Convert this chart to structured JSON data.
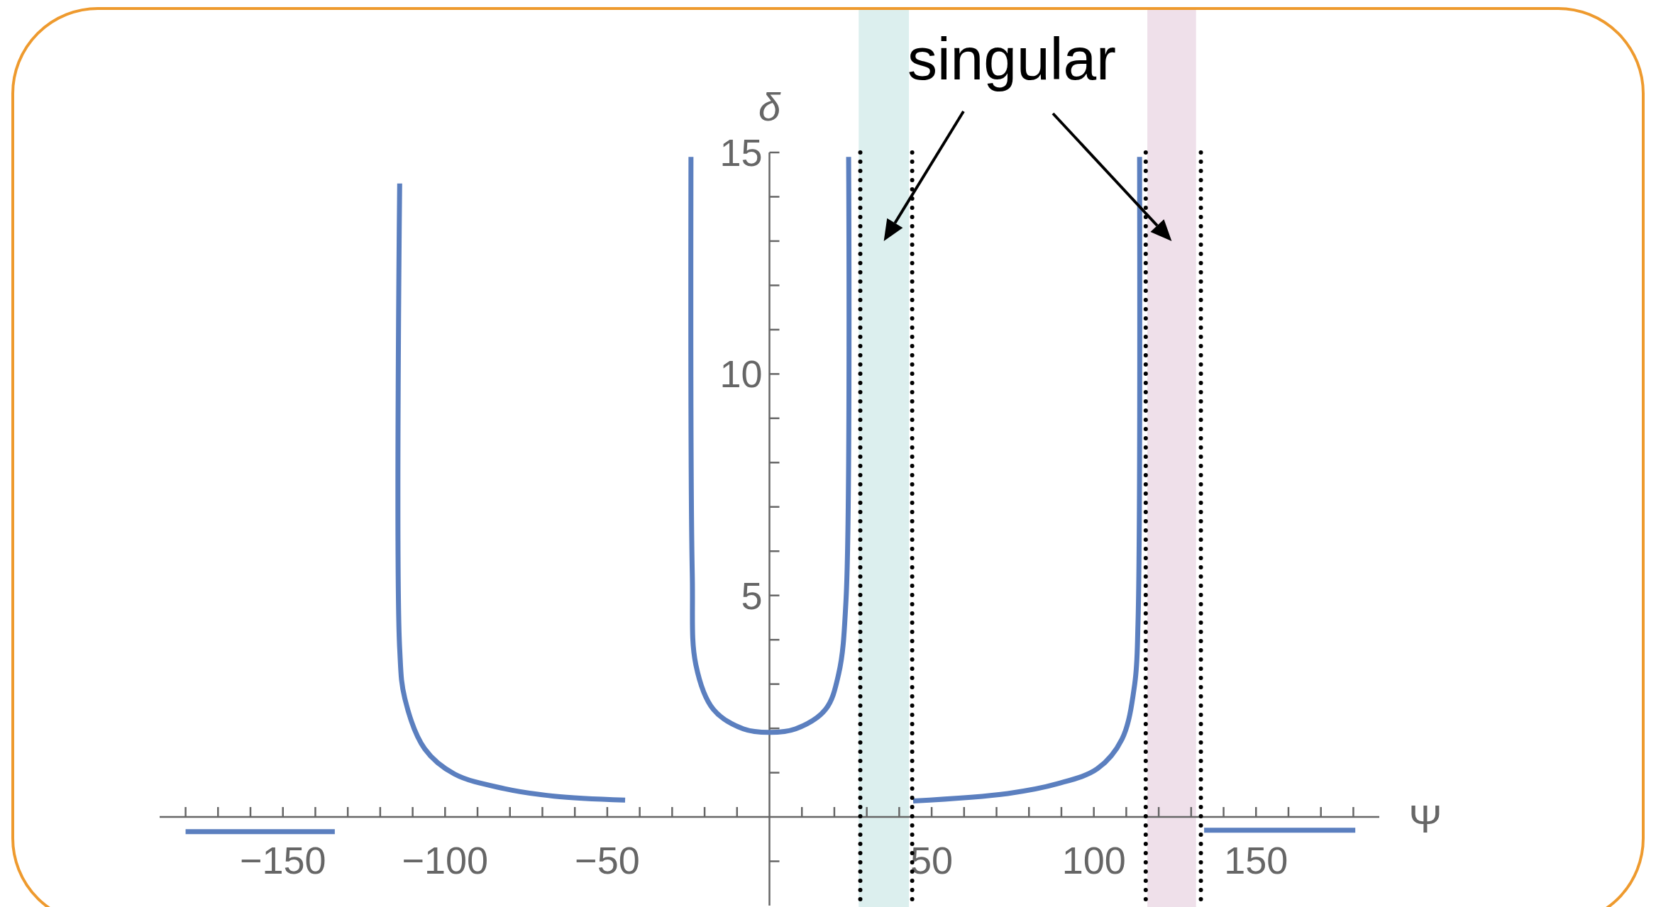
{
  "chart_data": {
    "type": "line",
    "xlabel": "Ψ",
    "ylabel": "δ",
    "xlim": [
      -188,
      188
    ],
    "ylim": [
      -2,
      15
    ],
    "xticks": [
      {
        "value": -180,
        "label": null
      },
      {
        "value": -170,
        "label": null
      },
      {
        "value": -160,
        "label": null
      },
      {
        "value": -150,
        "label": "−150"
      },
      {
        "value": -140,
        "label": null
      },
      {
        "value": -130,
        "label": null
      },
      {
        "value": -120,
        "label": null
      },
      {
        "value": -110,
        "label": null
      },
      {
        "value": -100,
        "label": "−100"
      },
      {
        "value": -90,
        "label": null
      },
      {
        "value": -80,
        "label": null
      },
      {
        "value": -70,
        "label": null
      },
      {
        "value": -60,
        "label": null
      },
      {
        "value": -50,
        "label": "−50"
      },
      {
        "value": -40,
        "label": null
      },
      {
        "value": -30,
        "label": null
      },
      {
        "value": -20,
        "label": null
      },
      {
        "value": -10,
        "label": null
      },
      {
        "value": 10,
        "label": null
      },
      {
        "value": 20,
        "label": null
      },
      {
        "value": 30,
        "label": null
      },
      {
        "value": 40,
        "label": null
      },
      50,
      {
        "value": 60,
        "label": null
      },
      {
        "value": 70,
        "label": null
      },
      {
        "value": 80,
        "label": null
      },
      {
        "value": 90,
        "label": null
      },
      100,
      {
        "value": 110,
        "label": null
      },
      {
        "value": 120,
        "label": null
      },
      {
        "value": 130,
        "label": null
      },
      {
        "value": 140,
        "label": null
      },
      150,
      {
        "value": 160,
        "label": null
      },
      {
        "value": 170,
        "label": null
      },
      {
        "value": 180,
        "label": null
      }
    ],
    "yticks": [
      {
        "value": -1,
        "label": null
      },
      {
        "value": 1,
        "label": null
      },
      {
        "value": 2,
        "label": null
      },
      {
        "value": 3,
        "label": null
      },
      {
        "value": 4,
        "label": null
      },
      5,
      {
        "value": 6,
        "label": null
      },
      {
        "value": 7,
        "label": null
      },
      {
        "value": 8,
        "label": null
      },
      {
        "value": 9,
        "label": null
      },
      10,
      {
        "value": 11,
        "label": null
      },
      {
        "value": 12,
        "label": null
      },
      {
        "value": 13,
        "label": null
      },
      {
        "value": 14,
        "label": null
      },
      15
    ],
    "x": [
      -180,
      -134,
      -124,
      -114,
      -114,
      -112.4,
      -106.3,
      -97.1,
      -81.7,
      -66.4,
      -44.5,
      -35,
      -24.2,
      -23.8,
      -22.7,
      -17.3,
      -8.1,
      0,
      8.1,
      17.3,
      21.3,
      23.6,
      24.4,
      34,
      44.3,
      73.5,
      88.8,
      101.1,
      108.7,
      112.6,
      113.6,
      114.1,
      124,
      134,
      180.6
    ],
    "series": [
      {
        "color": "#5b7fbf",
        "values": [
          -0.33,
          -0.33,
          null,
          14.3,
          3.8,
          2.67,
          1.54,
          0.97,
          0.64,
          0.47,
          0.38,
          null,
          14.9,
          5.5,
          3.44,
          2.43,
          1.99,
          1.91,
          1.99,
          2.43,
          3.22,
          4.9,
          14.9,
          null,
          0.36,
          0.53,
          0.75,
          1.09,
          1.76,
          3.0,
          4.34,
          14.9,
          null,
          -0.3,
          -0.3
        ]
      }
    ],
    "bands": [
      {
        "axis": "x",
        "from": 27.5,
        "to": 43,
        "color": "#dcefee"
      },
      {
        "axis": "x",
        "from": 116.5,
        "to": 131.5,
        "color": "#efe0ea"
      }
    ],
    "ref_lines": [
      {
        "axis": "x",
        "value": 28,
        "color": "#000000",
        "line_style": "dotted"
      },
      {
        "axis": "x",
        "value": 44,
        "color": "#000000",
        "line_style": "dotted"
      },
      {
        "axis": "x",
        "value": 116,
        "color": "#000000",
        "line_style": "dotted"
      },
      {
        "axis": "x",
        "value": 133,
        "color": "#000000",
        "line_style": "dotted"
      }
    ],
    "annotations": [
      "singular"
    ]
  }
}
